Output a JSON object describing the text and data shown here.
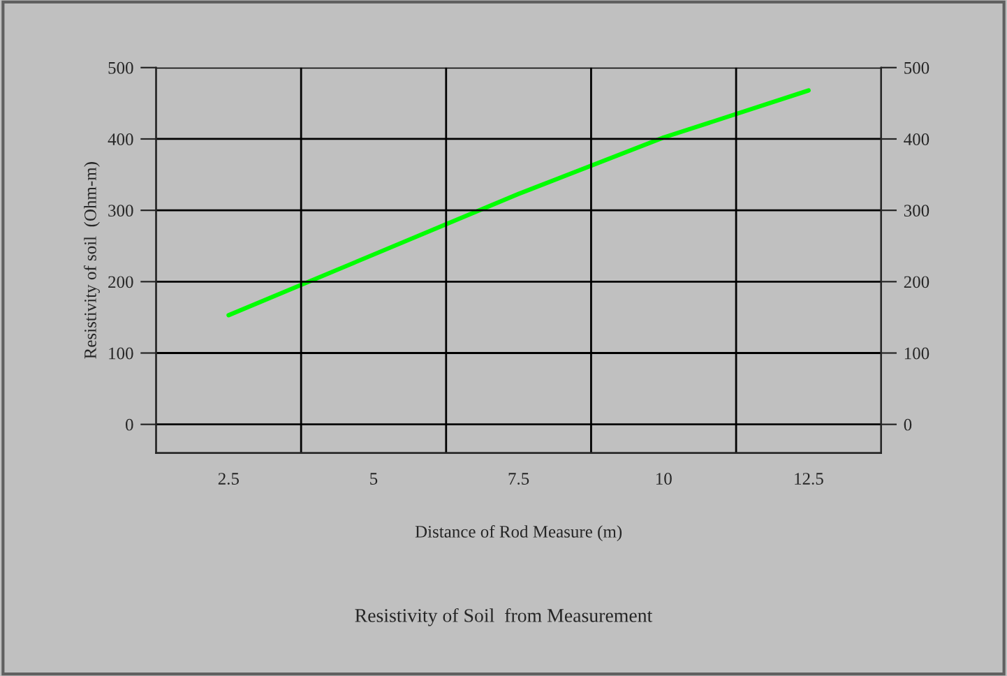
{
  "chart_data": {
    "type": "line",
    "title": "Resistivity of Soil  from Measurement",
    "xlabel": "Distance of Rod Measure (m)",
    "ylabel": "Resistivity of soil  (Ohm-m)",
    "categories": [
      "2.5",
      "5",
      "7.5",
      "10",
      "12.5"
    ],
    "series": [
      {
        "color": "#00ff00",
        "values": [
          153,
          238,
          323,
          402,
          468
        ]
      }
    ],
    "ylim": [
      -40,
      500
    ],
    "yticks": [
      0,
      100,
      200,
      300,
      400,
      500
    ],
    "y2lim": [
      -40,
      500
    ],
    "y2ticks": [
      0,
      100,
      200,
      300,
      400,
      500
    ],
    "grid": true,
    "marker": "none",
    "line_style": "solid"
  }
}
